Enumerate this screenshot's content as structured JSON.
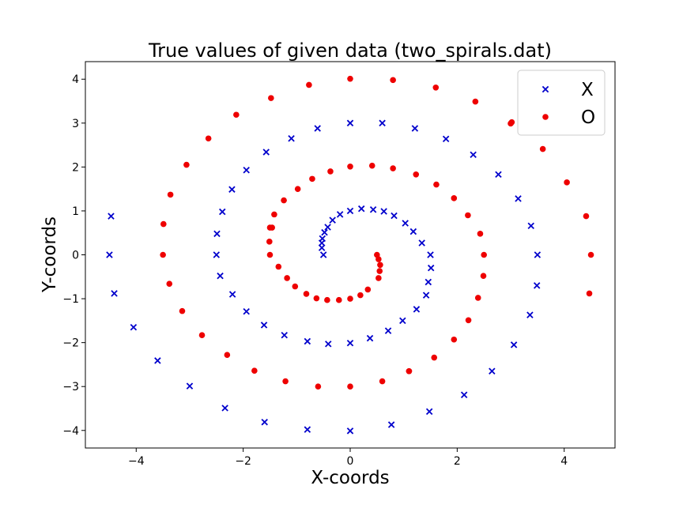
{
  "chart_data": {
    "type": "scatter",
    "title": "True values of given data (two_spirals.dat)",
    "xlabel": "X-coords",
    "ylabel": "Y-coords",
    "xlim": [
      -4.95,
      4.95
    ],
    "ylim": [
      -4.4,
      4.4
    ],
    "xticks": [
      -4,
      -2,
      0,
      2,
      4
    ],
    "yticks": [
      -4,
      -3,
      -2,
      -1,
      0,
      1,
      2,
      3,
      4
    ],
    "xtick_labels": [
      "−4",
      "−2",
      "0",
      "2",
      "4"
    ],
    "ytick_labels": [
      "−4",
      "−3",
      "−2",
      "−1",
      "0",
      "1",
      "2",
      "3",
      "4"
    ],
    "grid": false,
    "legend_position": "top-right",
    "series": [
      {
        "name": "X",
        "marker": "x",
        "color": "#0000cc",
        "points": [
          [
            0.0,
            1.0
          ],
          [
            0.43,
            1.03
          ],
          [
            0.82,
            0.89
          ],
          [
            1.18,
            0.53
          ],
          [
            1.5,
            0.0
          ],
          [
            1.46,
            -0.62
          ],
          [
            1.24,
            -1.24
          ],
          [
            0.71,
            -1.73
          ],
          [
            0.0,
            -2.01
          ],
          [
            -0.8,
            -1.97
          ],
          [
            -1.61,
            -1.6
          ],
          [
            -2.2,
            -0.9
          ],
          [
            -2.5,
            0.0
          ],
          [
            -2.39,
            0.98
          ],
          [
            -1.94,
            1.93
          ],
          [
            -1.1,
            2.65
          ],
          [
            0.0,
            3.0
          ],
          [
            1.21,
            2.88
          ],
          [
            2.3,
            2.28
          ],
          [
            3.38,
            0.66
          ],
          [
            3.5,
            0.0
          ],
          [
            3.36,
            -1.37
          ],
          [
            2.65,
            -2.65
          ],
          [
            1.48,
            -3.57
          ],
          [
            0.0,
            -4.01
          ],
          [
            -1.6,
            -3.81
          ],
          [
            -3.0,
            -2.99
          ],
          [
            -4.05,
            -1.65
          ],
          [
            -4.5,
            0.0
          ],
          [
            -0.5,
            0.0
          ],
          [
            -0.53,
            0.16
          ],
          [
            -0.53,
            0.27
          ],
          [
            -0.52,
            0.37
          ],
          [
            -0.48,
            0.51
          ],
          [
            -0.42,
            0.63
          ],
          [
            -0.33,
            0.79
          ],
          [
            -0.19,
            0.92
          ],
          [
            0.21,
            1.05
          ],
          [
            0.63,
            0.99
          ],
          [
            1.03,
            0.72
          ],
          [
            1.34,
            0.27
          ],
          [
            1.51,
            -0.3
          ],
          [
            1.42,
            -0.92
          ],
          [
            0.98,
            -1.5
          ],
          [
            0.37,
            -1.9
          ],
          [
            -0.41,
            -2.03
          ],
          [
            -1.23,
            -1.83
          ],
          [
            -1.94,
            -1.29
          ],
          [
            -2.43,
            -0.48
          ],
          [
            -2.49,
            0.48
          ],
          [
            -2.21,
            1.49
          ],
          [
            -1.57,
            2.34
          ],
          [
            -0.61,
            2.88
          ],
          [
            0.6,
            3.0
          ],
          [
            1.79,
            2.64
          ],
          [
            2.77,
            1.83
          ],
          [
            3.14,
            1.28
          ],
          [
            3.49,
            -0.7
          ],
          [
            3.06,
            -2.05
          ],
          [
            2.13,
            -3.19
          ],
          [
            0.77,
            -3.87
          ],
          [
            -0.8,
            -3.98
          ],
          [
            -2.34,
            -3.49
          ],
          [
            -3.6,
            -2.41
          ],
          [
            -4.41,
            -0.88
          ],
          [
            -4.47,
            0.88
          ]
        ]
      },
      {
        "name": "O",
        "marker": "o",
        "color": "#ee0000",
        "points": [
          [
            0.0,
            -1.0
          ],
          [
            -0.43,
            -1.03
          ],
          [
            -0.82,
            -0.89
          ],
          [
            -1.18,
            -0.53
          ],
          [
            -1.5,
            0.0
          ],
          [
            -1.46,
            0.62
          ],
          [
            -1.24,
            1.24
          ],
          [
            -0.71,
            1.73
          ],
          [
            0.0,
            2.01
          ],
          [
            0.8,
            1.97
          ],
          [
            1.61,
            1.6
          ],
          [
            2.2,
            0.9
          ],
          [
            2.5,
            0.0
          ],
          [
            2.39,
            -0.98
          ],
          [
            1.94,
            -1.93
          ],
          [
            1.1,
            -2.65
          ],
          [
            0.0,
            -3.0
          ],
          [
            -1.21,
            -2.88
          ],
          [
            -2.3,
            -2.28
          ],
          [
            -3.38,
            -0.66
          ],
          [
            -3.5,
            0.0
          ],
          [
            -3.36,
            1.37
          ],
          [
            -2.65,
            2.65
          ],
          [
            -1.48,
            3.57
          ],
          [
            0.0,
            4.01
          ],
          [
            1.6,
            3.81
          ],
          [
            3.0,
            2.99
          ],
          [
            4.05,
            1.65
          ],
          [
            4.5,
            0.0
          ],
          [
            0.5,
            0.0
          ],
          [
            0.53,
            -0.1
          ],
          [
            0.56,
            -0.23
          ],
          [
            0.55,
            -0.37
          ],
          [
            0.53,
            -0.53
          ],
          [
            0.33,
            -0.79
          ],
          [
            0.19,
            -0.92
          ],
          [
            -0.21,
            -1.03
          ],
          [
            -0.63,
            -0.99
          ],
          [
            -1.03,
            -0.72
          ],
          [
            -1.34,
            -0.27
          ],
          [
            -1.51,
            0.3
          ],
          [
            -1.42,
            0.92
          ],
          [
            -0.98,
            1.5
          ],
          [
            -0.37,
            1.9
          ],
          [
            0.41,
            2.03
          ],
          [
            1.23,
            1.83
          ],
          [
            1.94,
            1.29
          ],
          [
            2.43,
            0.48
          ],
          [
            2.49,
            -0.48
          ],
          [
            2.21,
            -1.49
          ],
          [
            1.57,
            -2.34
          ],
          [
            0.6,
            -2.88
          ],
          [
            -0.6,
            -3.0
          ],
          [
            -1.79,
            -2.64
          ],
          [
            -2.77,
            -1.83
          ],
          [
            -3.14,
            -1.28
          ],
          [
            -3.49,
            0.7
          ],
          [
            -3.06,
            2.05
          ],
          [
            -2.13,
            3.19
          ],
          [
            -0.77,
            3.87
          ],
          [
            0.8,
            3.98
          ],
          [
            2.34,
            3.49
          ],
          [
            3.6,
            2.41
          ],
          [
            4.41,
            0.88
          ],
          [
            4.47,
            -0.88
          ],
          [
            -1.5,
            0.62
          ],
          [
            1.1,
            -2.65
          ],
          [
            3.02,
            3.02
          ]
        ]
      }
    ]
  }
}
